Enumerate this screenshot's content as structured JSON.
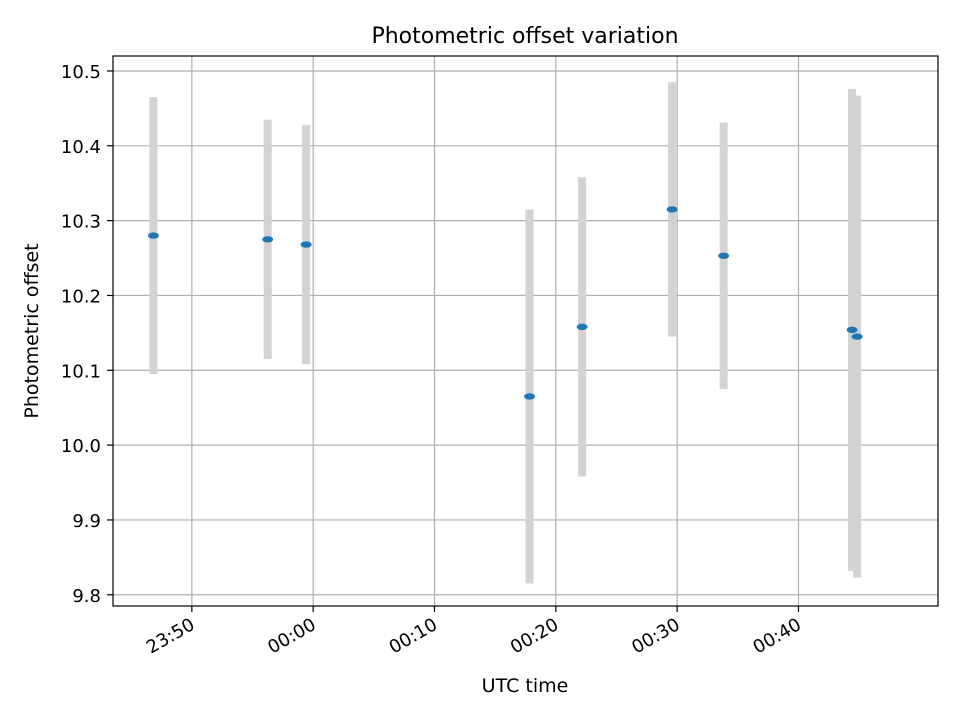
{
  "chart_data": {
    "type": "scatter",
    "title": "Photometric offset variation",
    "xlabel": "UTC time",
    "ylabel": "Photometric offset",
    "x_unit": "UTC time (HH:MM)",
    "xlim": [
      "23:43:30",
      "00:51:30"
    ],
    "ylim": [
      9.785,
      10.52
    ],
    "yticks": [
      9.8,
      9.9,
      10.0,
      10.1,
      10.2,
      10.3,
      10.4,
      10.5
    ],
    "ytick_labels": [
      "9.8",
      "9.9",
      "10.0",
      "10.1",
      "10.2",
      "10.3",
      "10.4",
      "10.5"
    ],
    "xticks": [
      "23:50",
      "00:00",
      "00:10",
      "00:20",
      "00:30",
      "00:40"
    ],
    "grid": true,
    "series": [
      {
        "marker_color": "#1f77b4",
        "errorbar_color": "#d3d3d3",
        "points": [
          {
            "x": "23:46:50",
            "y": 10.28,
            "err": 0.185
          },
          {
            "x": "23:56:15",
            "y": 10.275,
            "err": 0.16
          },
          {
            "x": "23:59:25",
            "y": 10.268,
            "err": 0.16
          },
          {
            "x": "00:17:50",
            "y": 10.065,
            "err": 0.25
          },
          {
            "x": "00:22:10",
            "y": 10.158,
            "err": 0.2
          },
          {
            "x": "00:29:35",
            "y": 10.315,
            "err": 0.17
          },
          {
            "x": "00:33:50",
            "y": 10.253,
            "err": 0.178
          },
          {
            "x": "00:44:25",
            "y": 10.154,
            "err": 0.322
          },
          {
            "x": "00:44:50",
            "y": 10.145,
            "err": 0.322
          }
        ]
      }
    ]
  }
}
